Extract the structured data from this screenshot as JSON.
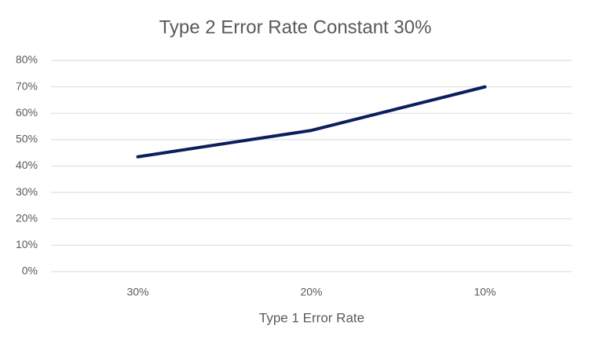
{
  "chart_data": {
    "type": "line",
    "title": "Type 2 Error Rate Constant 30%",
    "x_label": "Type 1 Error Rate",
    "categories": [
      "30%",
      "20%",
      "10%"
    ],
    "values": [
      43.5,
      53.5,
      70
    ],
    "color": "#0b1f5c",
    "ylim": [
      0,
      80
    ],
    "yticks": [
      {
        "value": 0,
        "label": "0%"
      },
      {
        "value": 10,
        "label": "10%"
      },
      {
        "value": 20,
        "label": "20%"
      },
      {
        "value": 30,
        "label": "30%"
      },
      {
        "value": 40,
        "label": "40%"
      },
      {
        "value": 50,
        "label": "50%"
      },
      {
        "value": 60,
        "label": "60%"
      },
      {
        "value": 70,
        "label": "70%"
      },
      {
        "value": 80,
        "label": "80%"
      }
    ],
    "grid": true
  }
}
